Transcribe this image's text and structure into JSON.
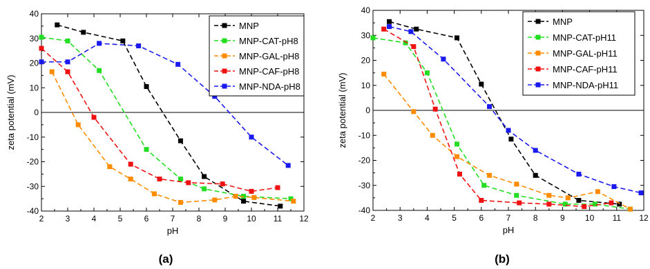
{
  "panels": [
    {
      "caption": "(a)"
    },
    {
      "caption": "(b)"
    }
  ],
  "chart_data": [
    {
      "type": "line",
      "xlabel": "pH",
      "ylabel": "zeta potential (mV)",
      "xlim": [
        2,
        12
      ],
      "ylim": [
        -40,
        40
      ],
      "xticks": [
        2,
        3,
        4,
        5,
        6,
        7,
        8,
        9,
        10,
        11,
        12
      ],
      "yticks": [
        -40,
        -30,
        -20,
        -10,
        0,
        10,
        20,
        30,
        40
      ],
      "legend_position": "top-right",
      "grid": false,
      "series": [
        {
          "name": "MNP",
          "color": "#000000",
          "x": [
            2.6,
            3.6,
            5.1,
            6.0,
            7.3,
            8.2,
            9.7,
            11.1
          ],
          "y": [
            35.5,
            32.5,
            29.0,
            10.5,
            -11.5,
            -26.0,
            -36.0,
            -38.0
          ]
        },
        {
          "name": "MNP-CAT-pH8",
          "color": "#22dd22",
          "x": [
            2.0,
            3.0,
            4.2,
            6.0,
            7.3,
            8.2,
            9.7,
            11.5
          ],
          "y": [
            30.5,
            29.0,
            17.0,
            -15.0,
            -27.0,
            -31.0,
            -34.0,
            -35.0
          ],
          "style": "dashed"
        },
        {
          "name": "MNP-GAL-pH8",
          "color": "#ff8c00",
          "x": [
            2.4,
            3.4,
            4.6,
            5.4,
            6.3,
            7.3,
            8.6,
            9.4,
            10.1,
            11.6
          ],
          "y": [
            16.5,
            -5.0,
            -22.0,
            -27.0,
            -33.0,
            -36.5,
            -35.5,
            -34.0,
            -34.5,
            -36.0
          ]
        },
        {
          "name": "MNP-CAF-pH8",
          "color": "#ee1111",
          "x": [
            2.0,
            3.0,
            4.0,
            5.4,
            6.5,
            7.6,
            8.9,
            10.0,
            11.0
          ],
          "y": [
            26.0,
            16.5,
            -2.0,
            -21.0,
            -27.0,
            -28.5,
            -29.0,
            -32.0,
            -30.5
          ]
        },
        {
          "name": "MNP-NDA-pH8",
          "color": "#1a1aee",
          "x": [
            2.0,
            3.0,
            4.2,
            5.7,
            7.2,
            8.6,
            10.0,
            11.4
          ],
          "y": [
            20.5,
            20.5,
            28.0,
            27.0,
            19.5,
            6.5,
            -10.0,
            -21.5
          ]
        }
      ]
    },
    {
      "type": "line",
      "xlabel": "pH",
      "ylabel": "zeta potential (mV)",
      "xlim": [
        2,
        12
      ],
      "ylim": [
        -40,
        40
      ],
      "xticks": [
        2,
        3,
        4,
        5,
        6,
        7,
        8,
        9,
        10,
        11,
        12
      ],
      "yticks": [
        -40,
        -30,
        -20,
        -10,
        0,
        10,
        20,
        30,
        40
      ],
      "legend_position": "top-right",
      "grid": false,
      "series": [
        {
          "name": "MNP",
          "color": "#000000",
          "x": [
            2.6,
            3.6,
            5.1,
            6.0,
            7.1,
            8.0,
            9.6,
            11.1
          ],
          "y": [
            35.5,
            32.5,
            29.0,
            10.5,
            -11.5,
            -26.0,
            -36.0,
            -37.5
          ]
        },
        {
          "name": "MNP-CAT-pH11",
          "color": "#22dd22",
          "x": [
            2.0,
            3.2,
            4.0,
            5.1,
            6.1,
            7.3,
            9.1,
            10.2,
            11.5
          ],
          "y": [
            29.0,
            27.0,
            15.0,
            -13.5,
            -30.0,
            -34.0,
            -37.5,
            -37.5,
            -39.5
          ]
        },
        {
          "name": "MNP-GAL-pH11",
          "color": "#ff8c00",
          "x": [
            2.4,
            3.5,
            4.2,
            5.1,
            6.3,
            7.3,
            8.5,
            9.2,
            10.3,
            11.5
          ],
          "y": [
            14.5,
            -0.5,
            -10.0,
            -18.5,
            -26.0,
            -29.5,
            -34.0,
            -35.0,
            -32.5,
            -39.5
          ]
        },
        {
          "name": "MNP-CAF-pH11",
          "color": "#ee1111",
          "x": [
            2.4,
            3.5,
            4.3,
            5.2,
            6.0,
            7.4,
            8.5,
            9.8,
            10.8
          ],
          "y": [
            32.5,
            25.5,
            0.5,
            -25.5,
            -36.0,
            -37.0,
            -37.5,
            -38.5,
            -37.0
          ]
        },
        {
          "name": "MNP-NDA-pH11",
          "color": "#1a1aee",
          "x": [
            2.6,
            3.4,
            4.6,
            6.3,
            7.0,
            8.0,
            9.6,
            10.9,
            11.9
          ],
          "y": [
            33.5,
            31.5,
            20.5,
            1.5,
            -8.0,
            -16.0,
            -25.5,
            -30.5,
            -33.0
          ]
        }
      ]
    }
  ]
}
